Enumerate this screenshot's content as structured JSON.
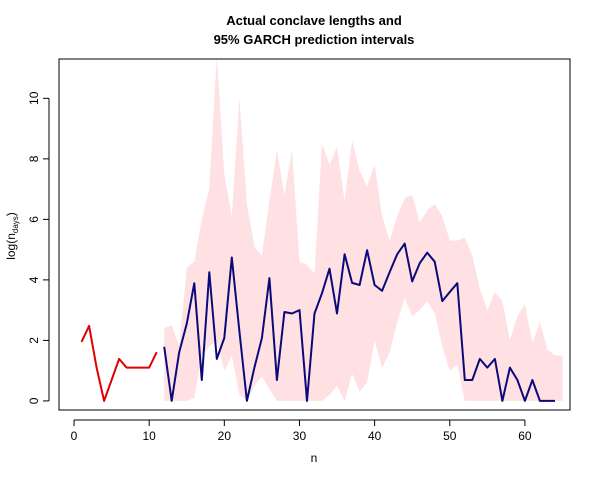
{
  "chart_data": {
    "type": "line",
    "title_line1": "Actual conclave lengths and",
    "title_line2": "95% GARCH prediction intervals",
    "xlabel": "n",
    "ylabel_main": "log(n",
    "ylabel_sub": "days",
    "ylabel_close": ")",
    "xlim": [
      -2,
      66
    ],
    "ylim": [
      -0.3,
      11.3
    ],
    "x_ticks": [
      "0",
      "10",
      "20",
      "30",
      "40",
      "50",
      "60"
    ],
    "y_ticks": [
      "0",
      "2",
      "4",
      "6",
      "8",
      "10"
    ],
    "colors": {
      "actual": "#e00000",
      "predicted": "#0a0a7a",
      "band": "#ffe0e3"
    },
    "band": {
      "x": [
        12,
        13,
        14,
        15,
        16,
        17,
        18,
        19,
        20,
        21,
        22,
        23,
        24,
        25,
        26,
        27,
        28,
        29,
        30,
        31,
        32,
        33,
        34,
        35,
        36,
        37,
        38,
        39,
        40,
        41,
        42,
        43,
        44,
        45,
        46,
        47,
        48,
        49,
        50,
        51,
        52,
        53,
        54,
        55,
        56,
        57,
        58,
        59,
        60,
        61,
        62,
        63,
        64,
        65
      ],
      "lower": [
        0,
        0,
        0,
        0,
        0.1,
        1.5,
        1.8,
        2.0,
        1.0,
        1.5,
        0.2,
        0,
        0.5,
        0.8,
        0.4,
        0,
        0,
        0,
        0,
        0,
        0,
        0,
        0.2,
        0.5,
        0,
        0.9,
        0.3,
        0.6,
        2.0,
        1.1,
        1.6,
        2.6,
        3.4,
        2.8,
        3.0,
        3.3,
        2.9,
        1.8,
        1.0,
        1.2,
        0,
        0,
        0,
        0,
        0,
        0,
        0,
        0,
        0,
        0,
        0,
        0,
        0,
        0
      ],
      "upper": [
        2.4,
        2.5,
        1.8,
        4.4,
        4.6,
        6.0,
        7.0,
        11.4,
        7.5,
        6.1,
        10.0,
        6.5,
        5.1,
        4.8,
        6.6,
        8.3,
        6.8,
        8.3,
        4.6,
        4.5,
        4.2,
        8.5,
        7.8,
        8.4,
        6.6,
        8.6,
        7.6,
        7.1,
        7.8,
        6.1,
        5.3,
        6.1,
        6.7,
        6.8,
        5.9,
        6.3,
        6.5,
        6.1,
        5.3,
        5.3,
        5.4,
        4.8,
        3.7,
        3.0,
        3.6,
        3.3,
        2.0,
        2.8,
        3.2,
        1.9,
        2.6,
        1.7,
        1.5,
        1.5
      ]
    },
    "series": [
      {
        "x": [
          1,
          2,
          3,
          4,
          5,
          6,
          7,
          8,
          9,
          10,
          11
        ],
        "values": [
          1.95,
          2.48,
          1.1,
          0.0,
          0.69,
          1.39,
          1.1,
          1.1,
          1.1,
          1.1,
          1.61
        ]
      },
      {
        "x": [
          12,
          13,
          14,
          15,
          16,
          17,
          18,
          19,
          20,
          21,
          22,
          23,
          24,
          25,
          26,
          27,
          28,
          29,
          30,
          31,
          32,
          33,
          34,
          35,
          36,
          37,
          38,
          39,
          40,
          41,
          42,
          43,
          44,
          45,
          46,
          47,
          48,
          49,
          50,
          51,
          52,
          53,
          54,
          55,
          56,
          57,
          58,
          59,
          60,
          61,
          62,
          63,
          64
        ],
        "values": [
          1.79,
          0.0,
          1.61,
          2.56,
          3.89,
          0.69,
          4.25,
          1.39,
          2.08,
          4.74,
          2.3,
          0.0,
          1.1,
          2.08,
          4.06,
          0.69,
          2.94,
          2.89,
          3.0,
          0.0,
          2.89,
          3.56,
          4.37,
          2.89,
          4.85,
          3.9,
          3.83,
          4.98,
          3.83,
          3.64,
          4.25,
          4.85,
          5.2,
          3.95,
          4.55,
          4.9,
          4.6,
          3.3,
          3.6,
          3.89,
          0.69,
          0.69,
          1.39,
          1.1,
          1.39,
          0.0,
          1.1,
          0.69,
          0.0,
          0.69,
          0.0,
          0.0,
          0.0
        ]
      }
    ]
  }
}
